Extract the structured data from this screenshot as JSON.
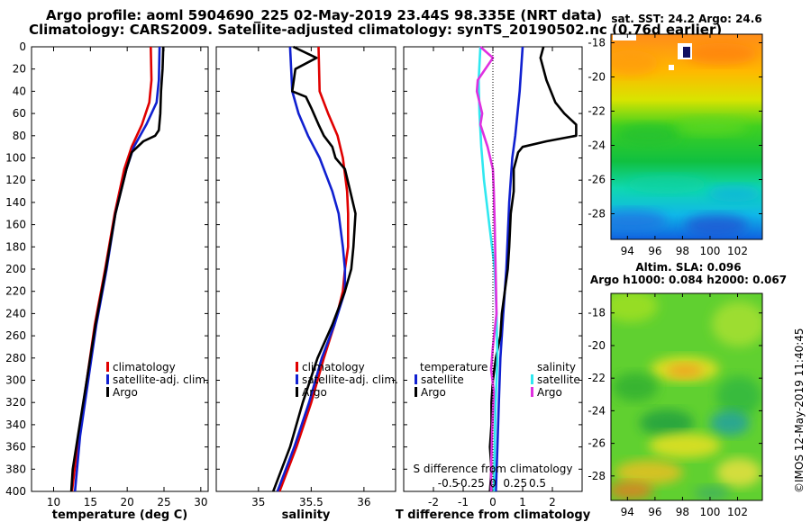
{
  "titles": {
    "line1": "Argo profile: aoml 5904690_225 02-May-2019 23.44S 98.335E (NRT data)",
    "line2": "Climatology: CARS2009. Satellite-adjusted climatology: synTS_20190502.nc (0.76d earlier)"
  },
  "copyright": "©IMOS 12-May-2019 11:40:45",
  "colors": {
    "climatology": "#e00000",
    "satellite": "#1020d0",
    "argo": "#000000",
    "sat_salinity": "#30e8f0",
    "argo_salinity": "#e030e0"
  },
  "chart_data": [
    {
      "type": "line",
      "id": "temperature",
      "xlabel": "temperature (deg C)",
      "ylabel": "depth",
      "xlim": [
        7,
        31
      ],
      "ylim": [
        400,
        0
      ],
      "xticks": [
        "10",
        "15",
        "20",
        "25",
        "30"
      ],
      "yticks": [
        "0",
        "20",
        "40",
        "60",
        "80",
        "100",
        "120",
        "140",
        "160",
        "180",
        "200",
        "220",
        "240",
        "260",
        "280",
        "300",
        "320",
        "340",
        "360",
        "380",
        "400"
      ],
      "legend": [
        "climatology",
        "satellite-adj. clim.",
        "Argo"
      ],
      "series": [
        {
          "name": "climatology",
          "depth": [
            0,
            30,
            50,
            70,
            90,
            110,
            150,
            200,
            250,
            300,
            350,
            400
          ],
          "values": [
            23.2,
            23.3,
            23.0,
            22.0,
            20.6,
            19.6,
            18.3,
            17.0,
            15.6,
            14.5,
            13.4,
            12.5
          ]
        },
        {
          "name": "satellite-adj. clim.",
          "depth": [
            0,
            30,
            50,
            70,
            90,
            110,
            150,
            200,
            250,
            300,
            350,
            400
          ],
          "values": [
            24.4,
            24.3,
            24.0,
            22.6,
            20.9,
            19.9,
            18.4,
            17.2,
            15.8,
            14.7,
            13.6,
            12.9
          ]
        },
        {
          "name": "Argo",
          "depth": [
            0,
            20,
            40,
            60,
            75,
            80,
            85,
            95,
            110,
            150,
            200,
            250,
            300,
            350,
            380,
            400
          ],
          "values": [
            24.9,
            24.8,
            24.6,
            24.5,
            24.3,
            23.8,
            22.2,
            20.6,
            19.9,
            18.4,
            17.1,
            15.7,
            14.5,
            13.3,
            12.6,
            12.4
          ]
        }
      ]
    },
    {
      "type": "line",
      "id": "salinity",
      "xlabel": "salinity",
      "xlim": [
        34.6,
        36.3
      ],
      "ylim": [
        400,
        0
      ],
      "xticks": [
        "35",
        "35.5",
        "36"
      ],
      "legend": [
        "climatology",
        "satellite-adj. clim.",
        "Argo"
      ],
      "series": [
        {
          "name": "climatology",
          "depth": [
            0,
            40,
            60,
            80,
            100,
            130,
            150,
            180,
            200,
            220,
            250,
            280,
            320,
            360,
            400
          ],
          "values": [
            35.57,
            35.58,
            35.66,
            35.75,
            35.8,
            35.84,
            35.85,
            35.85,
            35.82,
            35.8,
            35.72,
            35.62,
            35.5,
            35.36,
            35.2
          ]
        },
        {
          "name": "satellite-adj. clim.",
          "depth": [
            0,
            40,
            60,
            80,
            100,
            130,
            150,
            180,
            200,
            220,
            250,
            280,
            320,
            360,
            400
          ],
          "values": [
            35.3,
            35.32,
            35.38,
            35.47,
            35.58,
            35.7,
            35.76,
            35.8,
            35.82,
            35.82,
            35.72,
            35.6,
            35.48,
            35.34,
            35.18
          ]
        },
        {
          "name": "Argo",
          "depth": [
            0,
            10,
            20,
            40,
            45,
            55,
            70,
            80,
            90,
            100,
            110,
            130,
            150,
            180,
            200,
            220,
            250,
            280,
            320,
            360,
            390,
            400
          ],
          "values": [
            35.33,
            35.55,
            35.35,
            35.32,
            35.45,
            35.5,
            35.57,
            35.62,
            35.7,
            35.73,
            35.82,
            35.87,
            35.92,
            35.9,
            35.88,
            35.82,
            35.7,
            35.56,
            35.42,
            35.3,
            35.18,
            35.14
          ]
        }
      ]
    },
    {
      "type": "line",
      "id": "differences",
      "xlabel": "T difference from climatology",
      "top_axis_label": "S difference from climatology",
      "xlim": [
        -3,
        3
      ],
      "ylim": [
        400,
        0
      ],
      "xticks": [
        "-2",
        "-1",
        "0",
        "1",
        "2"
      ],
      "s_xticks": [
        "-0.5",
        "-0.25",
        "0",
        "0.25",
        "0.5"
      ],
      "legend_temperature": [
        "temperature",
        "satellite",
        "Argo"
      ],
      "legend_salinity": [
        "salinity",
        "satellite",
        "Argo"
      ],
      "series": [
        {
          "name": "T satellite",
          "depth": [
            0,
            40,
            80,
            100,
            140,
            200,
            240,
            280,
            320,
            360,
            400
          ],
          "values": [
            1.0,
            0.9,
            0.75,
            0.65,
            0.55,
            0.45,
            0.35,
            0.25,
            0.2,
            0.15,
            0.1
          ]
        },
        {
          "name": "T Argo",
          "depth": [
            0,
            10,
            30,
            50,
            60,
            70,
            80,
            85,
            90,
            95,
            100,
            110,
            130,
            150,
            180,
            200,
            220,
            240,
            260,
            280,
            300,
            320,
            340,
            360,
            380,
            400
          ],
          "values": [
            1.7,
            1.6,
            1.8,
            2.1,
            2.4,
            2.8,
            2.8,
            1.8,
            1.0,
            0.85,
            0.8,
            0.7,
            0.7,
            0.6,
            0.55,
            0.5,
            0.4,
            0.3,
            0.25,
            0.1,
            0.0,
            -0.05,
            -0.05,
            -0.1,
            -0.05,
            -0.1
          ]
        },
        {
          "name": "S satellite",
          "depth": [
            0,
            30,
            60,
            90,
            120,
            160,
            200,
            240,
            280,
            320,
            360,
            400
          ],
          "values": [
            -0.14,
            -0.16,
            -0.15,
            -0.13,
            -0.1,
            -0.04,
            0.02,
            0.04,
            0.05,
            0.03,
            0.02,
            0.01
          ]
        },
        {
          "name": "S Argo",
          "depth": [
            0,
            10,
            30,
            40,
            60,
            70,
            90,
            110,
            130,
            160,
            200,
            240,
            270,
            290,
            310,
            330,
            350,
            380,
            400
          ],
          "values": [
            -0.14,
            0.0,
            -0.17,
            -0.18,
            -0.12,
            -0.14,
            -0.06,
            0.0,
            0.01,
            0.02,
            0.03,
            0.04,
            0.0,
            -0.02,
            0.01,
            0.0,
            -0.01,
            -0.02,
            -0.02
          ]
        }
      ]
    },
    {
      "type": "heatmap",
      "id": "sst-map",
      "title": "sat. SST: 24.2 Argo: 24.6",
      "xticks": [
        "94",
        "96",
        "98",
        "100",
        "102"
      ],
      "yticks": [
        "-18",
        "-20",
        "-22",
        "-24",
        "-26",
        "-28"
      ]
    },
    {
      "type": "heatmap",
      "id": "sla-map",
      "title1": "Altim. SLA: 0.096",
      "title2": "Argo h1000: 0.084 h2000: 0.067",
      "xticks": [
        "94",
        "96",
        "98",
        "100",
        "102"
      ],
      "yticks": [
        "-18",
        "-20",
        "-22",
        "-24",
        "-26",
        "-28"
      ]
    }
  ]
}
